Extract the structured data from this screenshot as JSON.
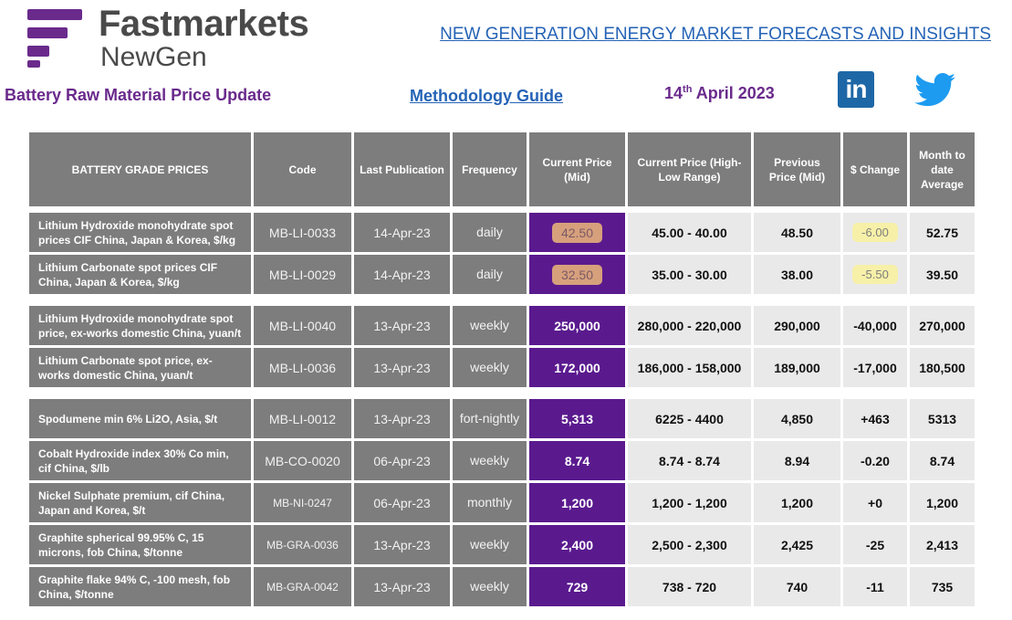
{
  "header": {
    "brand": "Fastmarkets",
    "brand_sub": "NewGen",
    "tagline": "NEW GENERATION ENERGY MARKET FORECASTS AND INSIGHTS",
    "doc_title": "Battery Raw Material Price Update",
    "methodology": "Methodology Guide",
    "date_day": "14",
    "date_suffix": "th",
    "date_rest": " April 2023",
    "linkedin": "in"
  },
  "table": {
    "headers": [
      "BATTERY GRADE PRICES",
      "Code",
      "Last Publication",
      "Frequency",
      "Current Price (Mid)",
      "Current Price (High-Low Range)",
      "Previous Price (Mid)",
      "$ Change",
      "Month to date Average"
    ],
    "rows": [
      [
        "Lithium Hydroxide monohydrate spot prices CIF China, Japan & Korea, $/kg",
        "MB-LI-0033",
        "14-Apr-23",
        "daily",
        "42.50",
        "45.00 - 40.00",
        "48.50",
        "-6.00",
        "52.75"
      ],
      [
        "Lithium Carbonate spot prices CIF China, Japan & Korea, $/kg",
        "MB-LI-0029",
        "14-Apr-23",
        "daily",
        "32.50",
        "35.00 - 30.00",
        "38.00",
        "-5.50",
        "39.50"
      ],
      [
        "Lithium Hydroxide monohydrate spot price, ex-works domestic China, yuan/t",
        "MB-LI-0040",
        "13-Apr-23",
        "weekly",
        "250,000",
        "280,000 - 220,000",
        "290,000",
        "-40,000",
        "270,000"
      ],
      [
        "Lithium Carbonate spot price, ex-works domestic China, yuan/t",
        "MB-LI-0036",
        "13-Apr-23",
        "weekly",
        "172,000",
        "186,000 - 158,000",
        "189,000",
        "-17,000",
        "180,500"
      ],
      [
        "Spodumene min 6% Li2O, Asia, $/t",
        "MB-LI-0012",
        "13-Apr-23",
        "fort-nightly",
        "5,313",
        "6225 - 4400",
        "4,850",
        "+463",
        "5313"
      ],
      [
        "Cobalt Hydroxide index 30% Co min, cif China, $/lb",
        "MB-CO-0020",
        "06-Apr-23",
        "weekly",
        "8.74",
        "8.74 - 8.74",
        "8.94",
        "-0.20",
        "8.74"
      ],
      [
        "Nickel Sulphate premium, cif China, Japan and Korea, $/t",
        "MB-NI-0247",
        "06-Apr-23",
        "monthly",
        "1,200",
        "1,200 - 1,200",
        "1,200",
        "+0",
        "1,200"
      ],
      [
        "Graphite spherical 99.95% C, 15 microns, fob China, $/tonne",
        "MB-GRA-0036",
        "13-Apr-23",
        "weekly",
        "2,400",
        "2,500 - 2,300",
        "2,425",
        "-25",
        "2,413"
      ],
      [
        "Graphite flake 94% C, -100 mesh, fob China, $/tonne",
        "MB-GRA-0042",
        "13-Apr-23",
        "weekly",
        "729",
        "738 - 720",
        "740",
        "-11",
        "735"
      ]
    ]
  },
  "colors": {
    "brand_purple": "#6a2a8c",
    "current_price_purple": "#5a1a8e",
    "header_gray": "#7d7d7d",
    "row_gray": "#e9e9e9",
    "link_blue": "#2563b6",
    "highlight_orange": "#d7a07c",
    "highlight_yellow": "#f7f0a8"
  }
}
